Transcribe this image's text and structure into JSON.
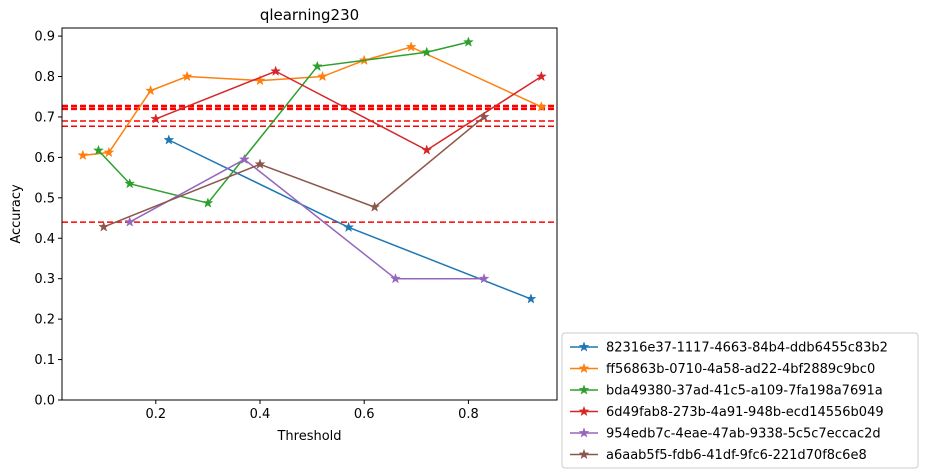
{
  "chart_data": {
    "type": "line",
    "title": "qlearning230",
    "xlabel": "Threshold",
    "ylabel": "Accuracy",
    "xlim": [
      0.02,
      0.97
    ],
    "ylim": [
      0.0,
      0.92
    ],
    "xticks": [
      0.2,
      0.4,
      0.6,
      0.8
    ],
    "xtick_labels": [
      "0.2",
      "0.4",
      "0.6",
      "0.8"
    ],
    "yticks": [
      0.0,
      0.1,
      0.2,
      0.3,
      0.4,
      0.5,
      0.6,
      0.7,
      0.8,
      0.9
    ],
    "ytick_labels": [
      "0.0",
      "0.1",
      "0.2",
      "0.3",
      "0.4",
      "0.5",
      "0.6",
      "0.7",
      "0.8",
      "0.9"
    ],
    "grid": false,
    "legend_position": "outside-lower-right",
    "marker": "star",
    "series": [
      {
        "name": "82316e37-1117-4663-84b4-ddb6455c83b2",
        "color": "#1f77b4",
        "x": [
          0.225,
          0.57,
          0.92
        ],
        "y": [
          0.643,
          0.427,
          0.25
        ]
      },
      {
        "name": "ff56863b-0710-4a58-ad22-4bf2889c9bc0",
        "color": "#ff7f0e",
        "x": [
          0.06,
          0.11,
          0.19,
          0.26,
          0.4,
          0.52,
          0.6,
          0.69,
          0.94
        ],
        "y": [
          0.605,
          0.612,
          0.765,
          0.8,
          0.79,
          0.8,
          0.84,
          0.873,
          0.725
        ]
      },
      {
        "name": "bda49380-37ad-41c5-a109-7fa198a7691a",
        "color": "#2ca02c",
        "x": [
          0.09,
          0.15,
          0.3,
          0.51,
          0.72,
          0.8
        ],
        "y": [
          0.617,
          0.535,
          0.487,
          0.825,
          0.86,
          0.885
        ]
      },
      {
        "name": "6d49fab8-273b-4a91-948b-ecd14556b049",
        "color": "#d62728",
        "x": [
          0.2,
          0.43,
          0.72,
          0.94
        ],
        "y": [
          0.695,
          0.813,
          0.618,
          0.8
        ]
      },
      {
        "name": "954edb7c-4eae-47ab-9338-5c5c7eccac2d",
        "color": "#9467bd",
        "x": [
          0.15,
          0.37,
          0.66,
          0.83
        ],
        "y": [
          0.44,
          0.595,
          0.3,
          0.3
        ]
      },
      {
        "name": "a6aab5f5-fdb6-41df-9fc6-221d70f8c6e8",
        "color": "#8c564b",
        "x": [
          0.1,
          0.4,
          0.62,
          0.83
        ],
        "y": [
          0.428,
          0.583,
          0.477,
          0.7
        ]
      }
    ],
    "hlines": [
      {
        "y": 0.727,
        "color": "#ff0000",
        "style": "dashed",
        "weight": "thick"
      },
      {
        "y": 0.72,
        "color": "#ff0000",
        "style": "dashed",
        "weight": "thick"
      },
      {
        "y": 0.69,
        "color": "#ff0000",
        "style": "dashed",
        "weight": "normal"
      },
      {
        "y": 0.677,
        "color": "#ff0000",
        "style": "dashed",
        "weight": "normal"
      },
      {
        "y": 0.44,
        "color": "#ff0000",
        "style": "dashed",
        "weight": "normal"
      }
    ]
  }
}
